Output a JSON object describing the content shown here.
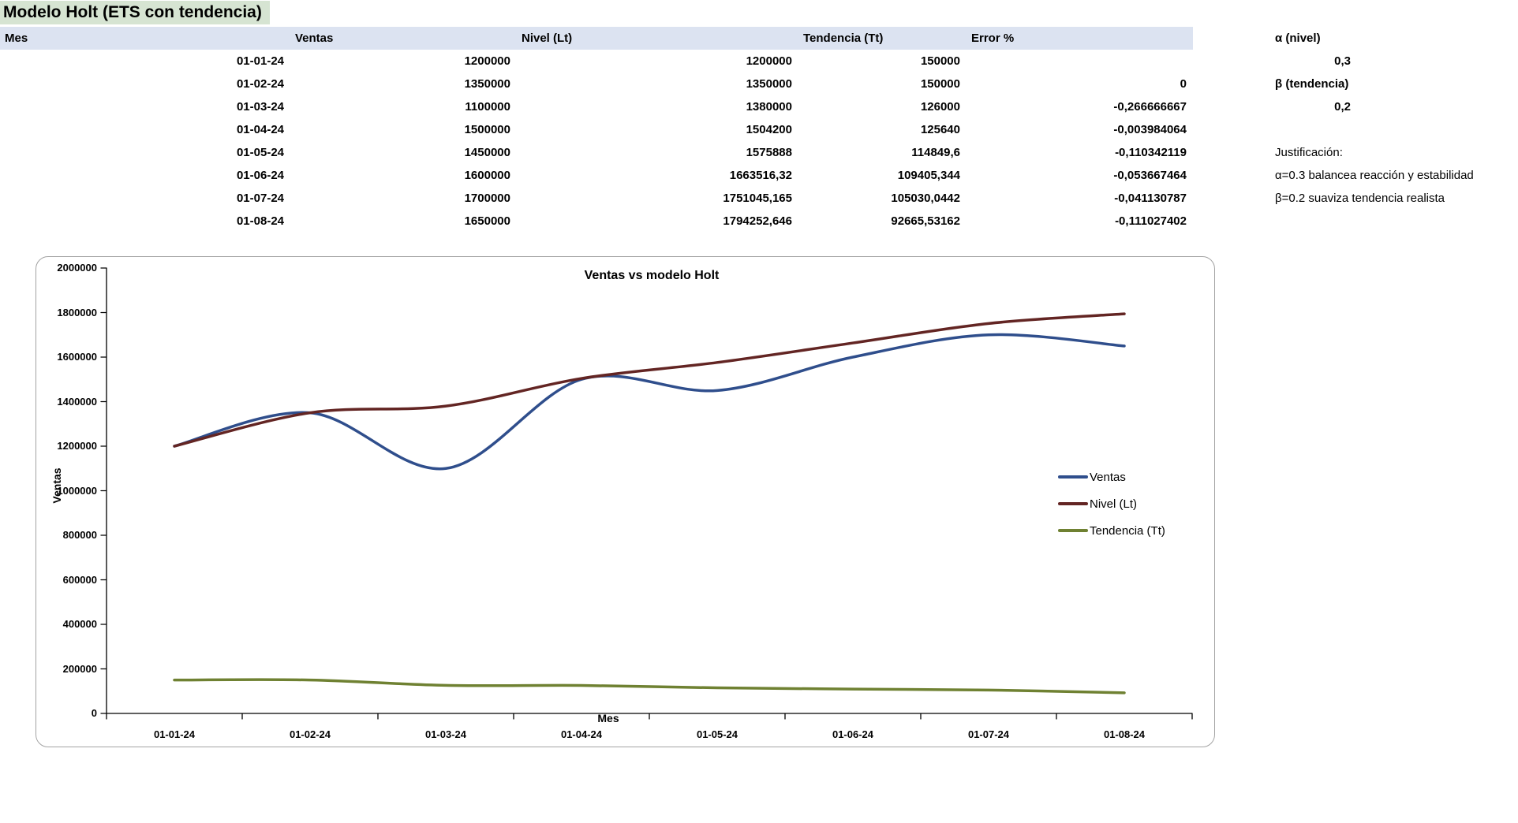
{
  "sheet": {
    "title": "Modelo Holt (ETS con tendencia)"
  },
  "table": {
    "headers": [
      "Mes",
      "Ventas",
      "Nivel (Lt)",
      "Tendencia (Tt)",
      "Error %"
    ],
    "rows": [
      [
        "01-01-24",
        "1200000",
        "1200000",
        "150000",
        ""
      ],
      [
        "01-02-24",
        "1350000",
        "1350000",
        "150000",
        "0"
      ],
      [
        "01-03-24",
        "1100000",
        "1380000",
        "126000",
        "-0,266666667"
      ],
      [
        "01-04-24",
        "1500000",
        "1504200",
        "125640",
        "-0,003984064"
      ],
      [
        "01-05-24",
        "1450000",
        "1575888",
        "114849,6",
        "-0,110342119"
      ],
      [
        "01-06-24",
        "1600000",
        "1663516,32",
        "109405,344",
        "-0,053667464"
      ],
      [
        "01-07-24",
        "1700000",
        "1751045,165",
        "105030,0442",
        "-0,041130787"
      ],
      [
        "01-08-24",
        "1650000",
        "1794252,646",
        "92665,53162",
        "-0,111027402"
      ]
    ]
  },
  "params": {
    "alpha_label": "α (nivel)",
    "alpha_value": "0,3",
    "beta_label": "β (tendencia)",
    "beta_value": "0,2",
    "justification_title": "Justificación:",
    "justification_lines": [
      "α=0.3 balancea reacción y estabilidad",
      "β=0.2 suaviza tendencia realista"
    ]
  },
  "chart_data": {
    "type": "line",
    "title": "Ventas vs modelo Holt",
    "xlabel": "Mes",
    "ylabel": "Ventas",
    "categories": [
      "01-01-24",
      "01-02-24",
      "01-03-24",
      "01-04-24",
      "01-05-24",
      "01-06-24",
      "01-07-24",
      "01-08-24"
    ],
    "series": [
      {
        "name": "Ventas",
        "color": "#2F4E8C",
        "values": [
          1200000,
          1350000,
          1100000,
          1500000,
          1450000,
          1600000,
          1700000,
          1650000
        ]
      },
      {
        "name": "Nivel (Lt)",
        "color": "#632523",
        "values": [
          1200000,
          1350000,
          1380000,
          1504200,
          1575888,
          1663516.32,
          1751045.165,
          1794252.646
        ]
      },
      {
        "name": "Tendencia (Tt)",
        "color": "#6F8132",
        "values": [
          150000,
          150000,
          126000,
          125640,
          114849.6,
          109405.344,
          105030.0442,
          92665.53162
        ]
      }
    ],
    "ylim": [
      0,
      2000000
    ],
    "ytick_step": 200000,
    "grid": false,
    "legend_position": "right-inside",
    "line_smoothing": true,
    "axis_color": "#000000"
  }
}
